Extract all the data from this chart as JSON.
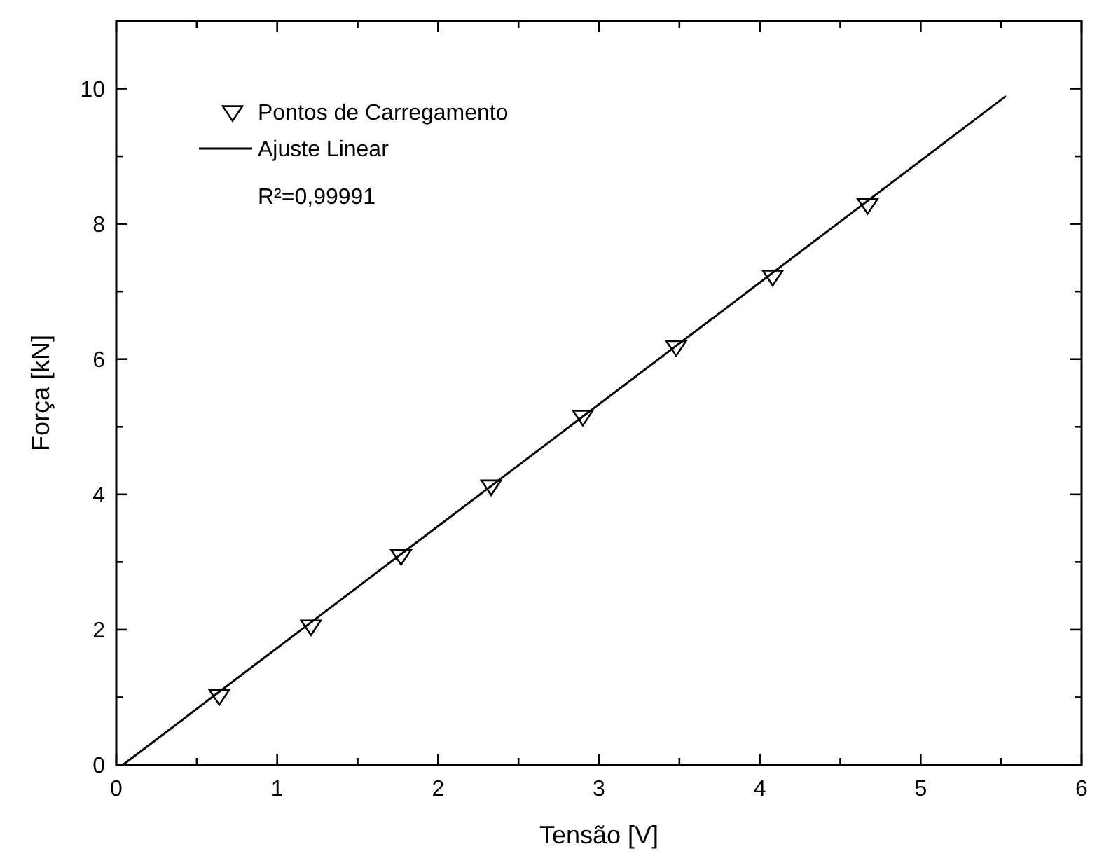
{
  "chart_data": {
    "type": "scatter",
    "xlabel": "Tensão [V]",
    "ylabel": "Força [kN]",
    "xlim": [
      0,
      6
    ],
    "ylim": [
      0,
      11
    ],
    "xticks": [
      0,
      {
        "value": 0.5,
        "label": null
      },
      1,
      {
        "value": 1.5,
        "label": null
      },
      2,
      {
        "value": 2.5,
        "label": null
      },
      3,
      {
        "value": 3.5,
        "label": null
      },
      4,
      {
        "value": 4.5,
        "label": null
      },
      5,
      {
        "value": 5.5,
        "label": null
      },
      6
    ],
    "yticks": [
      0,
      {
        "value": 1,
        "label": null
      },
      2,
      {
        "value": 3,
        "label": null
      },
      4,
      {
        "value": 5,
        "label": null
      },
      6,
      {
        "value": 7,
        "label": null
      },
      8,
      {
        "value": 9,
        "label": null
      },
      10
    ],
    "grid": false,
    "legend": "top left",
    "series": [
      {
        "name": "Pontos de Carregamento",
        "marker": "triangle",
        "color": "#000000",
        "x": [
          0.64,
          1.21,
          1.77,
          2.33,
          2.9,
          3.48,
          4.08,
          4.67
        ],
        "values": [
          1.02,
          2.05,
          3.09,
          4.12,
          5.15,
          6.18,
          7.22,
          8.28
        ]
      },
      {
        "name": "Ajuste Linear",
        "type": "line",
        "marker": "none",
        "line_style": "solid",
        "color": "#000000",
        "x": [
          0.04,
          5.53
        ],
        "values": [
          0,
          9.89
        ]
      }
    ],
    "annotations": [
      "R²=0,99991"
    ]
  }
}
